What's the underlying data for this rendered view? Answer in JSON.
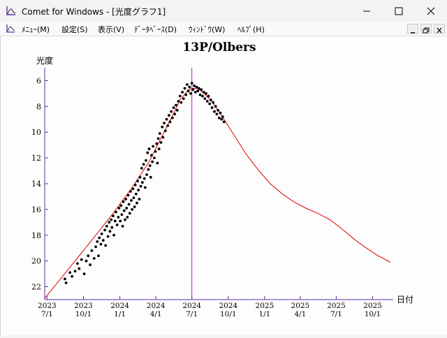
{
  "window": {
    "title": "Comet for Windows - [光度グラフ1]"
  },
  "menu": {
    "items": [
      {
        "label": "ﾒﾆｭｰ(M)"
      },
      {
        "label": "設定(S)"
      },
      {
        "label": "表示(V)"
      },
      {
        "label": "ﾃﾞｰﾀﾍﾞｰｽ(D)"
      },
      {
        "label": "ｳｨﾝﾄﾞｳ(W)"
      },
      {
        "label": "ﾍﾙﾌﾟ(H)"
      }
    ]
  },
  "colors": {
    "axis": "#5a2ea6",
    "curve": "#e00000",
    "points": "#000000",
    "current_date_line": "#a020c0"
  },
  "chart_data": {
    "type": "scatter",
    "title": "13P/Olbers",
    "ylabel": "光度",
    "xlabel": "日付",
    "y_inverted": true,
    "ylim": [
      23,
      5
    ],
    "y_ticks": [
      "6",
      "8",
      "10",
      "12",
      "14",
      "16",
      "18",
      "20",
      "22"
    ],
    "x_ticks": [
      {
        "year": "2023",
        "date": "7/1"
      },
      {
        "year": "2023",
        "date": "10/1"
      },
      {
        "year": "2024",
        "date": "1/1"
      },
      {
        "year": "2024",
        "date": "4/1"
      },
      {
        "year": "2024",
        "date": "7/1"
      },
      {
        "year": "2024",
        "date": "10/1"
      },
      {
        "year": "2025",
        "date": "1/1"
      },
      {
        "year": "2025",
        "date": "4/1"
      },
      {
        "year": "2025",
        "date": "7/1"
      },
      {
        "year": "2025",
        "date": "10/1"
      }
    ],
    "current_date": "2024-07-01",
    "series": [
      {
        "kind": "curve",
        "points": [
          [
            "2023-06-25",
            22.9
          ],
          [
            "2023-08-01",
            21.5
          ],
          [
            "2023-09-15",
            19.8
          ],
          [
            "2023-11-01",
            18.0
          ],
          [
            "2023-12-15",
            16.3
          ],
          [
            "2024-02-01",
            14.3
          ],
          [
            "2024-03-15",
            12.3
          ],
          [
            "2024-04-15",
            10.4
          ],
          [
            "2024-05-15",
            8.6
          ],
          [
            "2024-06-01",
            7.5
          ],
          [
            "2024-06-20",
            6.8
          ],
          [
            "2024-07-01",
            6.6
          ],
          [
            "2024-07-15",
            6.6
          ],
          [
            "2024-08-01",
            7.0
          ],
          [
            "2024-08-20",
            7.6
          ],
          [
            "2024-09-05",
            8.3
          ],
          [
            "2024-09-20",
            9.0
          ],
          [
            "2024-10-15",
            10.2
          ],
          [
            "2024-11-15",
            11.7
          ],
          [
            "2024-12-15",
            12.9
          ],
          [
            "2025-01-15",
            14.0
          ],
          [
            "2025-02-15",
            14.8
          ],
          [
            "2025-03-15",
            15.4
          ],
          [
            "2025-04-15",
            15.9
          ],
          [
            "2025-05-15",
            16.3
          ],
          [
            "2025-06-15",
            16.8
          ],
          [
            "2025-07-15",
            17.5
          ],
          [
            "2025-08-15",
            18.3
          ],
          [
            "2025-09-15",
            19.0
          ],
          [
            "2025-10-15",
            19.6
          ],
          [
            "2025-11-15",
            20.1
          ]
        ]
      },
      {
        "kind": "observations",
        "points": [
          [
            "2023-08-15",
            21.4
          ],
          [
            "2023-08-18",
            21.7
          ],
          [
            "2023-08-28",
            20.9
          ],
          [
            "2023-09-02",
            21.2
          ],
          [
            "2023-09-10",
            20.8
          ],
          [
            "2023-09-16",
            20.2
          ],
          [
            "2023-09-20",
            20.6
          ],
          [
            "2023-09-26",
            19.9
          ],
          [
            "2023-10-03",
            21.0
          ],
          [
            "2023-10-08",
            20.0
          ],
          [
            "2023-10-13",
            19.6
          ],
          [
            "2023-10-18",
            20.3
          ],
          [
            "2023-10-22",
            19.2
          ],
          [
            "2023-10-28",
            19.8
          ],
          [
            "2023-11-01",
            18.9
          ],
          [
            "2023-11-05",
            18.5
          ],
          [
            "2023-11-08",
            19.6
          ],
          [
            "2023-11-10",
            18.2
          ],
          [
            "2023-11-14",
            18.7
          ],
          [
            "2023-11-16",
            17.9
          ],
          [
            "2023-11-20",
            18.4
          ],
          [
            "2023-11-24",
            17.6
          ],
          [
            "2023-11-26",
            18.8
          ],
          [
            "2023-11-29",
            17.3
          ],
          [
            "2023-12-02",
            18.1
          ],
          [
            "2023-12-05",
            17.0
          ],
          [
            "2023-12-07",
            17.7
          ],
          [
            "2023-12-10",
            16.8
          ],
          [
            "2023-12-12",
            17.4
          ],
          [
            "2023-12-15",
            16.5
          ],
          [
            "2023-12-17",
            18.0
          ],
          [
            "2023-12-20",
            16.9
          ],
          [
            "2023-12-22",
            16.2
          ],
          [
            "2023-12-25",
            17.2
          ],
          [
            "2023-12-28",
            16.6
          ],
          [
            "2023-12-30",
            15.9
          ],
          [
            "2024-01-02",
            16.9
          ],
          [
            "2024-01-04",
            15.7
          ],
          [
            "2024-01-06",
            16.4
          ],
          [
            "2024-01-08",
            17.3
          ],
          [
            "2024-01-10",
            15.4
          ],
          [
            "2024-01-12",
            16.1
          ],
          [
            "2024-01-14",
            16.8
          ],
          [
            "2024-01-16",
            15.2
          ],
          [
            "2024-01-18",
            15.9
          ],
          [
            "2024-01-20",
            16.6
          ],
          [
            "2024-01-22",
            14.9
          ],
          [
            "2024-01-24",
            15.6
          ],
          [
            "2024-01-26",
            16.3
          ],
          [
            "2024-01-28",
            14.6
          ],
          [
            "2024-01-30",
            15.3
          ],
          [
            "2024-02-01",
            16.0
          ],
          [
            "2024-02-03",
            14.4
          ],
          [
            "2024-02-05",
            15.1
          ],
          [
            "2024-02-07",
            15.8
          ],
          [
            "2024-02-09",
            14.1
          ],
          [
            "2024-02-11",
            14.8
          ],
          [
            "2024-02-13",
            15.5
          ],
          [
            "2024-02-15",
            13.8
          ],
          [
            "2024-02-17",
            14.5
          ],
          [
            "2024-02-19",
            15.2
          ],
          [
            "2024-02-21",
            13.5
          ],
          [
            "2024-02-23",
            14.2
          ],
          [
            "2024-02-25",
            12.8
          ],
          [
            "2024-02-27",
            13.9
          ],
          [
            "2024-03-01",
            12.5
          ],
          [
            "2024-03-03",
            13.6
          ],
          [
            "2024-03-05",
            14.3
          ],
          [
            "2024-03-07",
            12.2
          ],
          [
            "2024-03-09",
            13.3
          ],
          [
            "2024-03-11",
            11.6
          ],
          [
            "2024-03-13",
            12.9
          ],
          [
            "2024-03-15",
            11.3
          ],
          [
            "2024-03-17",
            12.6
          ],
          [
            "2024-03-19",
            13.5
          ],
          [
            "2024-03-21",
            11.8
          ],
          [
            "2024-03-23",
            12.3
          ],
          [
            "2024-03-25",
            11.1
          ],
          [
            "2024-03-28",
            12.0
          ],
          [
            "2024-03-31",
            11.5
          ],
          [
            "2024-04-03",
            10.9
          ],
          [
            "2024-04-05",
            12.4
          ],
          [
            "2024-04-07",
            10.5
          ],
          [
            "2024-04-09",
            11.3
          ],
          [
            "2024-04-11",
            10.1
          ],
          [
            "2024-04-14",
            10.8
          ],
          [
            "2024-04-17",
            9.6
          ],
          [
            "2024-04-19",
            10.4
          ],
          [
            "2024-04-22",
            9.3
          ],
          [
            "2024-04-25",
            9.9
          ],
          [
            "2024-04-28",
            9.0
          ],
          [
            "2024-05-01",
            9.5
          ],
          [
            "2024-05-04",
            8.7
          ],
          [
            "2024-05-07",
            9.2
          ],
          [
            "2024-05-10",
            8.4
          ],
          [
            "2024-05-13",
            8.9
          ],
          [
            "2024-05-16",
            8.1
          ],
          [
            "2024-05-19",
            8.6
          ],
          [
            "2024-05-22",
            7.9
          ],
          [
            "2024-05-25",
            8.3
          ],
          [
            "2024-05-28",
            7.6
          ],
          [
            "2024-06-01",
            7.2
          ],
          [
            "2024-06-04",
            7.7
          ],
          [
            "2024-06-07",
            6.9
          ],
          [
            "2024-06-10",
            7.4
          ],
          [
            "2024-06-13",
            6.6
          ],
          [
            "2024-06-16",
            7.1
          ],
          [
            "2024-06-19",
            6.3
          ],
          [
            "2024-06-22",
            6.8
          ],
          [
            "2024-06-25",
            6.5
          ],
          [
            "2024-06-28",
            7.0
          ],
          [
            "2024-07-01",
            6.2
          ],
          [
            "2024-07-04",
            6.7
          ],
          [
            "2024-07-07",
            6.4
          ],
          [
            "2024-07-10",
            6.9
          ],
          [
            "2024-07-13",
            6.5
          ],
          [
            "2024-07-16",
            6.8
          ],
          [
            "2024-07-19",
            6.6
          ],
          [
            "2024-07-22",
            7.1
          ],
          [
            "2024-07-25",
            6.7
          ],
          [
            "2024-07-28",
            7.2
          ],
          [
            "2024-07-31",
            6.9
          ],
          [
            "2024-08-03",
            7.4
          ],
          [
            "2024-08-06",
            7.0
          ],
          [
            "2024-08-09",
            7.6
          ],
          [
            "2024-08-12",
            7.2
          ],
          [
            "2024-08-15",
            7.8
          ],
          [
            "2024-08-18",
            7.5
          ],
          [
            "2024-08-21",
            8.1
          ],
          [
            "2024-08-24",
            7.7
          ],
          [
            "2024-08-27",
            8.4
          ],
          [
            "2024-08-30",
            8.0
          ],
          [
            "2024-09-02",
            8.6
          ],
          [
            "2024-09-05",
            8.3
          ],
          [
            "2024-09-08",
            8.9
          ],
          [
            "2024-09-11",
            8.5
          ],
          [
            "2024-09-14",
            9.0
          ],
          [
            "2024-09-17",
            8.8
          ],
          [
            "2024-09-20",
            9.2
          ]
        ]
      }
    ]
  }
}
